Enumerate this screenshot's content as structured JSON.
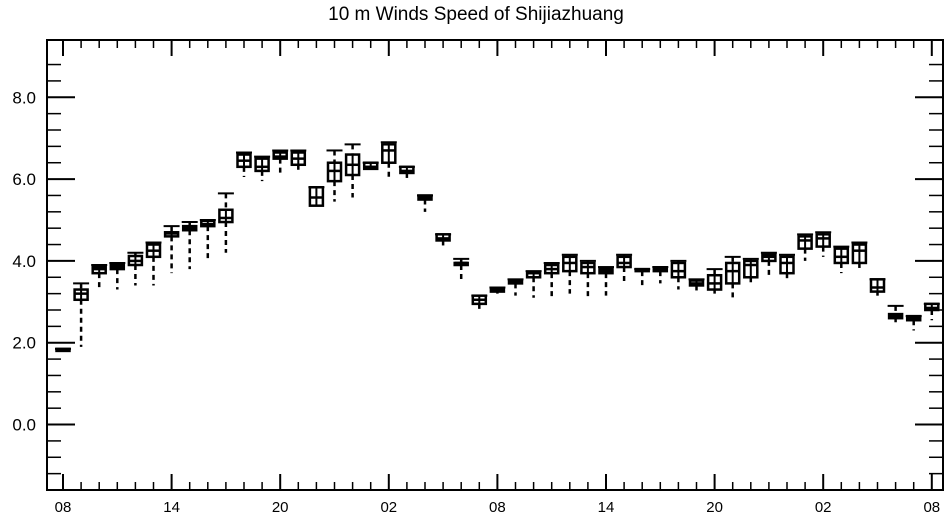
{
  "chart_data": {
    "type": "box",
    "title": "10 m Winds Speed of Shijiazhuang",
    "xlabel": "",
    "ylabel": "",
    "ylim": [
      -1.6,
      9.4
    ],
    "yticks": [
      0.0,
      2.0,
      4.0,
      6.0,
      8.0
    ],
    "ytick_labels": [
      "0.0",
      "2.0",
      "4.0",
      "6.0",
      "8.0"
    ],
    "xlim": [
      0,
      48.3
    ],
    "xticks": [
      0,
      6,
      12,
      18,
      24,
      30,
      36,
      42,
      48
    ],
    "xtick_labels": [
      "08",
      "14",
      "20",
      "02",
      "08",
      "14",
      "20",
      "02",
      "08"
    ],
    "grid": false,
    "boxes": [
      {
        "x": 0,
        "min": 1.8,
        "q1": 1.8,
        "median": 1.82,
        "q3": 1.85,
        "max": 1.85
      },
      {
        "x": 1,
        "min": 1.9,
        "q1": 3.05,
        "median": 3.2,
        "q3": 3.3,
        "max": 3.45
      },
      {
        "x": 2,
        "min": 3.35,
        "q1": 3.7,
        "median": 3.8,
        "q3": 3.85,
        "max": 3.9
      },
      {
        "x": 3,
        "min": 3.3,
        "q1": 3.8,
        "median": 3.85,
        "q3": 3.9,
        "max": 3.95
      },
      {
        "x": 4,
        "min": 3.4,
        "q1": 3.9,
        "median": 4.0,
        "q3": 4.12,
        "max": 4.2
      },
      {
        "x": 5,
        "min": 3.4,
        "q1": 4.1,
        "median": 4.25,
        "q3": 4.4,
        "max": 4.45
      },
      {
        "x": 6,
        "min": 3.7,
        "q1": 4.6,
        "median": 4.67,
        "q3": 4.7,
        "max": 4.85
      },
      {
        "x": 7,
        "min": 3.8,
        "q1": 4.75,
        "median": 4.8,
        "q3": 4.85,
        "max": 4.95
      },
      {
        "x": 8,
        "min": 4.0,
        "q1": 4.85,
        "median": 4.9,
        "q3": 4.98,
        "max": 5.0
      },
      {
        "x": 9,
        "min": 4.2,
        "q1": 4.95,
        "median": 5.05,
        "q3": 5.25,
        "max": 5.65
      },
      {
        "x": 10,
        "min": 6.05,
        "q1": 6.3,
        "median": 6.45,
        "q3": 6.6,
        "max": 6.65
      },
      {
        "x": 11,
        "min": 5.95,
        "q1": 6.2,
        "median": 6.3,
        "q3": 6.5,
        "max": 6.55
      },
      {
        "x": 12,
        "min": 6.15,
        "q1": 6.5,
        "median": 6.55,
        "q3": 6.65,
        "max": 6.7
      },
      {
        "x": 13,
        "min": 6.2,
        "q1": 6.35,
        "median": 6.5,
        "q3": 6.65,
        "max": 6.7
      },
      {
        "x": 14,
        "min": 5.35,
        "q1": 5.35,
        "median": 5.55,
        "q3": 5.8,
        "max": 5.8
      },
      {
        "x": 15,
        "min": 5.45,
        "q1": 5.95,
        "median": 6.2,
        "q3": 6.4,
        "max": 6.7
      },
      {
        "x": 16,
        "min": 5.55,
        "q1": 6.1,
        "median": 6.35,
        "q3": 6.6,
        "max": 6.85
      },
      {
        "x": 17,
        "min": 6.25,
        "q1": 6.25,
        "median": 6.3,
        "q3": 6.4,
        "max": 6.4
      },
      {
        "x": 18,
        "min": 6.05,
        "q1": 6.4,
        "median": 6.7,
        "q3": 6.85,
        "max": 6.9
      },
      {
        "x": 19,
        "min": 5.95,
        "q1": 6.15,
        "median": 6.2,
        "q3": 6.3,
        "max": 6.3
      },
      {
        "x": 20,
        "min": 5.2,
        "q1": 5.5,
        "median": 5.55,
        "q3": 5.6,
        "max": 5.6
      },
      {
        "x": 21,
        "min": 4.35,
        "q1": 4.5,
        "median": 4.55,
        "q3": 4.65,
        "max": 4.65
      },
      {
        "x": 22,
        "min": 3.55,
        "q1": 3.9,
        "median": 3.95,
        "q3": 3.95,
        "max": 4.05
      },
      {
        "x": 23,
        "min": 2.8,
        "q1": 2.95,
        "median": 3.05,
        "q3": 3.15,
        "max": 3.15
      },
      {
        "x": 24,
        "min": 3.2,
        "q1": 3.25,
        "median": 3.3,
        "q3": 3.33,
        "max": 3.35
      },
      {
        "x": 25,
        "min": 3.15,
        "q1": 3.45,
        "median": 3.5,
        "q3": 3.52,
        "max": 3.55
      },
      {
        "x": 26,
        "min": 3.1,
        "q1": 3.6,
        "median": 3.7,
        "q3": 3.72,
        "max": 3.75
      },
      {
        "x": 27,
        "min": 3.1,
        "q1": 3.7,
        "median": 3.8,
        "q3": 3.9,
        "max": 3.95
      },
      {
        "x": 28,
        "min": 3.2,
        "q1": 3.75,
        "median": 3.95,
        "q3": 4.1,
        "max": 4.15
      },
      {
        "x": 29,
        "min": 3.1,
        "q1": 3.7,
        "median": 3.85,
        "q3": 3.95,
        "max": 4.0
      },
      {
        "x": 30,
        "min": 3.15,
        "q1": 3.7,
        "median": 3.75,
        "q3": 3.8,
        "max": 3.85
      },
      {
        "x": 31,
        "min": 3.5,
        "q1": 3.85,
        "median": 3.95,
        "q3": 4.1,
        "max": 4.15
      },
      {
        "x": 32,
        "min": 3.4,
        "q1": 3.75,
        "median": 3.78,
        "q3": 3.8,
        "max": 3.8
      },
      {
        "x": 33,
        "min": 3.45,
        "q1": 3.75,
        "median": 3.8,
        "q3": 3.82,
        "max": 3.85
      },
      {
        "x": 34,
        "min": 3.3,
        "q1": 3.6,
        "median": 3.75,
        "q3": 3.95,
        "max": 4.0
      },
      {
        "x": 35,
        "min": 3.25,
        "q1": 3.4,
        "median": 3.45,
        "q3": 3.52,
        "max": 3.55
      },
      {
        "x": 36,
        "min": 3.2,
        "q1": 3.3,
        "median": 3.45,
        "q3": 3.65,
        "max": 3.8
      },
      {
        "x": 37,
        "min": 3.1,
        "q1": 3.45,
        "median": 3.75,
        "q3": 3.95,
        "max": 4.1
      },
      {
        "x": 38,
        "min": 3.4,
        "q1": 3.6,
        "median": 3.9,
        "q3": 4.0,
        "max": 4.05
      },
      {
        "x": 39,
        "min": 3.6,
        "q1": 4.0,
        "median": 4.1,
        "q3": 4.15,
        "max": 4.2
      },
      {
        "x": 40,
        "min": 3.55,
        "q1": 3.7,
        "median": 3.95,
        "q3": 4.1,
        "max": 4.15
      },
      {
        "x": 41,
        "min": 4.0,
        "q1": 4.3,
        "median": 4.5,
        "q3": 4.6,
        "max": 4.65
      },
      {
        "x": 42,
        "min": 4.1,
        "q1": 4.35,
        "median": 4.55,
        "q3": 4.65,
        "max": 4.7
      },
      {
        "x": 43,
        "min": 3.7,
        "q1": 3.95,
        "median": 4.1,
        "q3": 4.3,
        "max": 4.35
      },
      {
        "x": 44,
        "min": 3.75,
        "q1": 3.95,
        "median": 4.25,
        "q3": 4.4,
        "max": 4.45
      },
      {
        "x": 45,
        "min": 3.15,
        "q1": 3.25,
        "median": 3.35,
        "q3": 3.55,
        "max": 3.55
      },
      {
        "x": 46,
        "min": 2.5,
        "q1": 2.6,
        "median": 2.65,
        "q3": 2.7,
        "max": 2.9
      },
      {
        "x": 47,
        "min": 2.3,
        "q1": 2.55,
        "median": 2.6,
        "q3": 2.65,
        "max": 2.65
      },
      {
        "x": 48,
        "min": 2.55,
        "q1": 2.8,
        "median": 2.85,
        "q3": 2.95,
        "max": 2.95
      }
    ]
  }
}
